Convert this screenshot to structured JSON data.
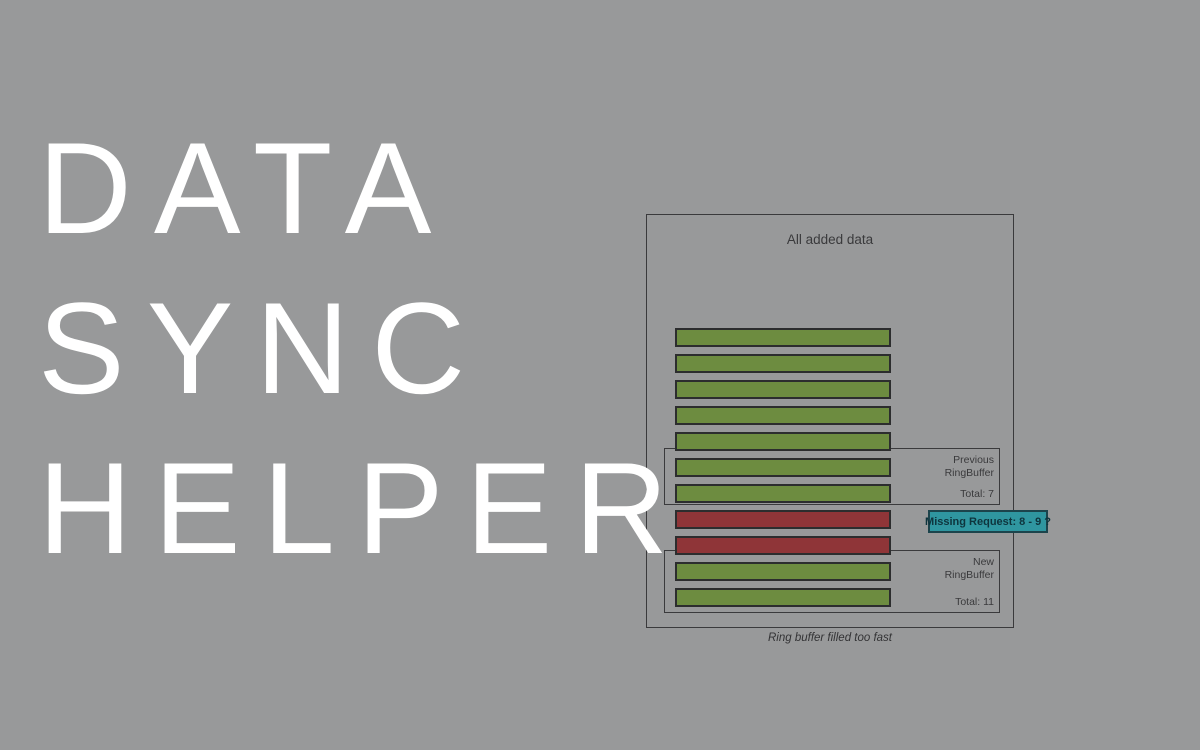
{
  "background_color": "#98999a",
  "hero": {
    "text_color": "#ffffff",
    "lines": [
      "DATA",
      "SYNC",
      "HELPER"
    ]
  },
  "diagram": {
    "title": "All added data",
    "caption": "Ring buffer filled too fast",
    "previous_buffer": {
      "name_line1": "Previous",
      "name_line2": "RingBuffer",
      "total": "Total: 7"
    },
    "new_buffer": {
      "name_line1": "New",
      "name_line2": "RingBuffer",
      "total": "Total: 11"
    },
    "missing_request": {
      "label": "Missing Request: 8 - 9 ?",
      "fill": "#2f96a0",
      "border": "#1c444c",
      "text_color": "#0e343d"
    },
    "bars": [
      "green",
      "green",
      "green",
      "green",
      "green",
      "green",
      "green",
      "red",
      "red",
      "green",
      "green"
    ],
    "colors": {
      "green": "#6d8c40",
      "red": "#8f3538"
    }
  }
}
